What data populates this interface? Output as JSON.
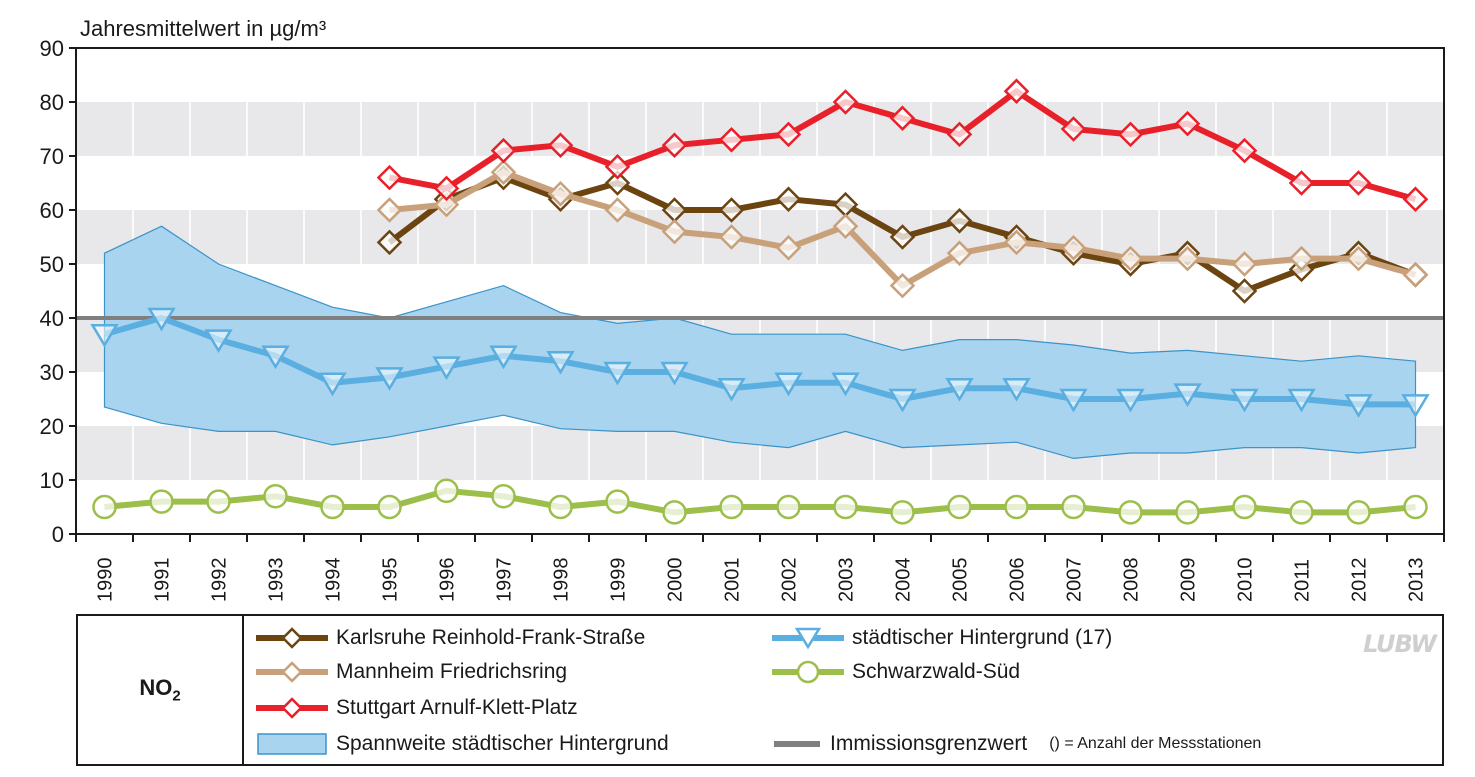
{
  "chart_data": {
    "type": "line",
    "ylabel": "Jahresmittelwert in µg/m³",
    "ylim": [
      0,
      90
    ],
    "yticks": [
      0,
      10,
      20,
      30,
      40,
      50,
      60,
      70,
      80,
      90
    ],
    "x": [
      "1990",
      "1991",
      "1992",
      "1993",
      "1994",
      "1995",
      "1996",
      "1997",
      "1998",
      "1999",
      "2000",
      "2001",
      "2002",
      "2003",
      "2004",
      "2005",
      "2006",
      "2007",
      "2008",
      "2009",
      "2010",
      "2011",
      "2012",
      "2013"
    ],
    "limit_value": 40,
    "range_band": {
      "name": "Spannweite städtischer Hintergrund",
      "upper": [
        52,
        57,
        50,
        46,
        42,
        40,
        43,
        46,
        41,
        39,
        40,
        37,
        37,
        37,
        34,
        36,
        36,
        35,
        33.5,
        34,
        33,
        32,
        33,
        32
      ],
      "lower": [
        23.5,
        20.5,
        19,
        19,
        16.5,
        18,
        20,
        22,
        19.5,
        19,
        19,
        17,
        16,
        19,
        16,
        16.5,
        17,
        14,
        15,
        15,
        16,
        16,
        15,
        16
      ]
    },
    "series": [
      {
        "name": "Karlsruhe Reinhold-Frank-Straße",
        "color": "#6b4410",
        "marker": "diamond",
        "values": [
          null,
          null,
          null,
          null,
          null,
          54,
          62,
          66,
          62,
          65,
          60,
          60,
          62,
          61,
          55,
          58,
          55,
          52,
          50,
          52,
          45,
          49,
          52,
          48
        ]
      },
      {
        "name": "Mannheim Friedrichsring",
        "color": "#c8a07a",
        "marker": "diamond",
        "values": [
          null,
          null,
          null,
          null,
          null,
          60,
          61,
          67,
          63,
          60,
          56,
          55,
          53,
          57,
          46,
          52,
          54,
          53,
          51,
          51,
          50,
          51,
          51,
          48
        ]
      },
      {
        "name": "Stuttgart Arnulf-Klett-Platz",
        "color": "#e8202a",
        "marker": "diamond",
        "values": [
          null,
          null,
          null,
          null,
          null,
          66,
          64,
          71,
          72,
          68,
          72,
          73,
          74,
          80,
          77,
          74,
          82,
          75,
          74,
          76,
          71,
          65,
          65,
          62
        ]
      },
      {
        "name": "städtischer Hintergrund (17)",
        "color": "#5aaee0",
        "marker": "triangle-down",
        "values": [
          37,
          40,
          36,
          33,
          28,
          29,
          31,
          33,
          32,
          30,
          30,
          27,
          28,
          28,
          25,
          27,
          27,
          25,
          25,
          26,
          25,
          25,
          24,
          24
        ]
      },
      {
        "name": "Schwarzwald-Süd",
        "color": "#9bbf4a",
        "marker": "circle",
        "values": [
          5,
          6,
          6,
          7,
          5,
          5,
          8,
          7,
          5,
          6,
          4,
          5,
          5,
          5,
          4,
          5,
          5,
          5,
          4,
          4,
          5,
          4,
          4,
          5
        ]
      }
    ]
  },
  "legend": {
    "pollutant_main": "NO",
    "pollutant_sub": "2",
    "karlsruhe": "Karlsruhe Reinhold-Frank-Straße",
    "mannheim": "Mannheim Friedrichsring",
    "stuttgart": "Stuttgart Arnulf-Klett-Platz",
    "hintergrund": "städtischer Hintergrund (17)",
    "schwarzwald": "Schwarzwald-Süd",
    "spannweite": "Spannweite städtischer Hintergrund",
    "grenzwert": "Immissionsgrenzwert",
    "note": "() = Anzahl der Messstationen",
    "logo": "LUBW"
  },
  "colors": {
    "band_fill": "#a8d4ef",
    "band_edge": "#3a93c9",
    "limit": "#7f7f7f",
    "grid_band": "#e8e8ea"
  }
}
